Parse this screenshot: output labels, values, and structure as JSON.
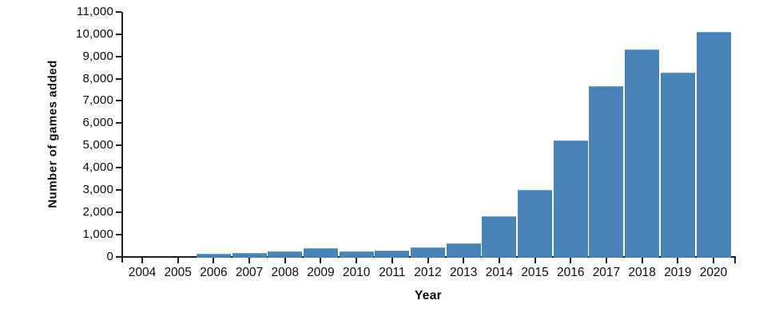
{
  "chart_data": {
    "type": "bar",
    "title": "",
    "xlabel": "Year",
    "ylabel": "Number of games added",
    "categories": [
      "2004",
      "2005",
      "2006",
      "2007",
      "2008",
      "2009",
      "2010",
      "2011",
      "2012",
      "2013",
      "2014",
      "2015",
      "2016",
      "2017",
      "2018",
      "2019",
      "2020"
    ],
    "values": [
      0,
      0,
      110,
      160,
      250,
      370,
      250,
      280,
      400,
      580,
      1800,
      2980,
      5230,
      7650,
      9320,
      8280,
      10090
    ],
    "ylim": [
      0,
      11000
    ],
    "ytick_step": 1000,
    "ytick_labels": [
      "0",
      "1,000",
      "2,000",
      "3,000",
      "4,000",
      "5,000",
      "6,000",
      "7,000",
      "8,000",
      "9,000",
      "10,000",
      "11,000"
    ],
    "grid": false,
    "legend_position": "none",
    "bar_color": "#4883b8",
    "axis_color": "#1f1f1f",
    "text_color": "#0d0d0d"
  }
}
